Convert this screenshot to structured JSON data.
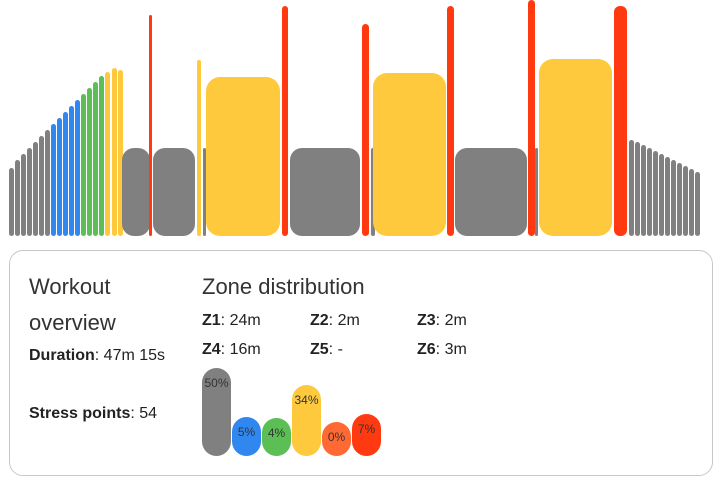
{
  "colors": {
    "gray": "#808080",
    "blue": "#3187f0",
    "green": "#5cbf55",
    "yellow": "#ffc93e",
    "orange": "#ff6933",
    "red": "#ff3a10"
  },
  "overview": {
    "title": "Workout overview",
    "duration_label": "Duration",
    "duration_value": "47m 15s",
    "stress_label": "Stress points",
    "stress_value": "54"
  },
  "zones": {
    "title": "Zone distribution",
    "entries": [
      {
        "label": "Z1",
        "value": "24m"
      },
      {
        "label": "Z2",
        "value": "2m"
      },
      {
        "label": "Z3",
        "value": "2m"
      },
      {
        "label": "Z4",
        "value": "16m"
      },
      {
        "label": "Z5",
        "value": "-"
      },
      {
        "label": "Z6",
        "value": "3m"
      }
    ],
    "distribution": [
      {
        "zone": "Z1",
        "percent": 50,
        "label": "50%",
        "color": "#808080"
      },
      {
        "zone": "Z2",
        "percent": 5,
        "label": "5%",
        "color": "#3187f0"
      },
      {
        "zone": "Z3",
        "percent": 4,
        "label": "4%",
        "color": "#5cbf55"
      },
      {
        "zone": "Z4",
        "percent": 34,
        "label": "34%",
        "color": "#ffc93e"
      },
      {
        "zone": "Z5",
        "percent": 0,
        "label": "0%",
        "color": "#ff6933"
      },
      {
        "zone": "Z6",
        "percent": 7,
        "label": "7%",
        "color": "#ff3a10"
      }
    ]
  }
}
